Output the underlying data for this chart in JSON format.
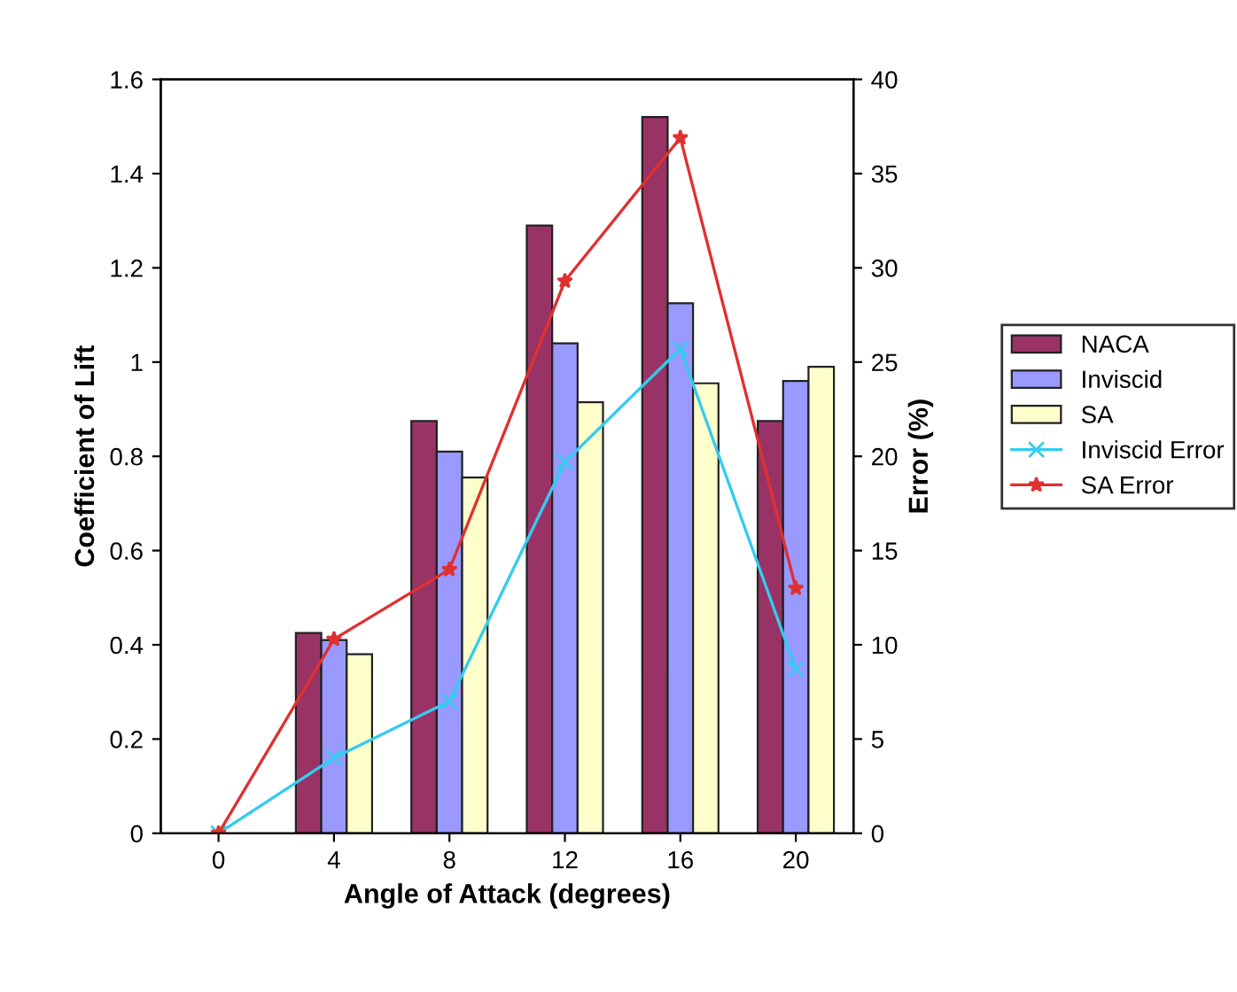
{
  "chart_data": {
    "type": "bar",
    "xlabel": "Angle of Attack (degrees)",
    "ylabel": "Coefficient of Lift",
    "y2label": "Error (%)",
    "categories": [
      "0",
      "4",
      "8",
      "12",
      "16",
      "20"
    ],
    "ylim": [
      0,
      1.6
    ],
    "yticks": [
      0,
      0.2,
      0.4,
      0.6,
      0.8,
      1,
      1.2,
      1.4,
      1.6
    ],
    "y2lim": [
      0,
      40
    ],
    "y2ticks": [
      0,
      5,
      10,
      15,
      20,
      25,
      30,
      35,
      40
    ],
    "grid": false,
    "legend": "right",
    "series": [
      {
        "name": "NACA",
        "color": "#993366",
        "values": [
          null,
          0.425,
          0.875,
          1.29,
          1.52,
          0.875
        ]
      },
      {
        "name": "Inviscid",
        "color": "#9999ff",
        "values": [
          null,
          0.41,
          0.81,
          1.04,
          1.125,
          0.96
        ]
      },
      {
        "name": "SA",
        "color": "#ffffcc",
        "values": [
          null,
          0.38,
          0.755,
          0.915,
          0.955,
          0.99
        ]
      },
      {
        "name": "Inviscid Error",
        "type": "line",
        "axis": "y2",
        "color": "#33ccee",
        "marker": "cross",
        "values": [
          0,
          4,
          7,
          19.7,
          25.7,
          8.7
        ]
      },
      {
        "name": "SA Error",
        "type": "line",
        "axis": "y2",
        "color": "#e03030",
        "marker": "star",
        "values": [
          0,
          10.3,
          14,
          29.3,
          36.9,
          13
        ]
      }
    ]
  }
}
